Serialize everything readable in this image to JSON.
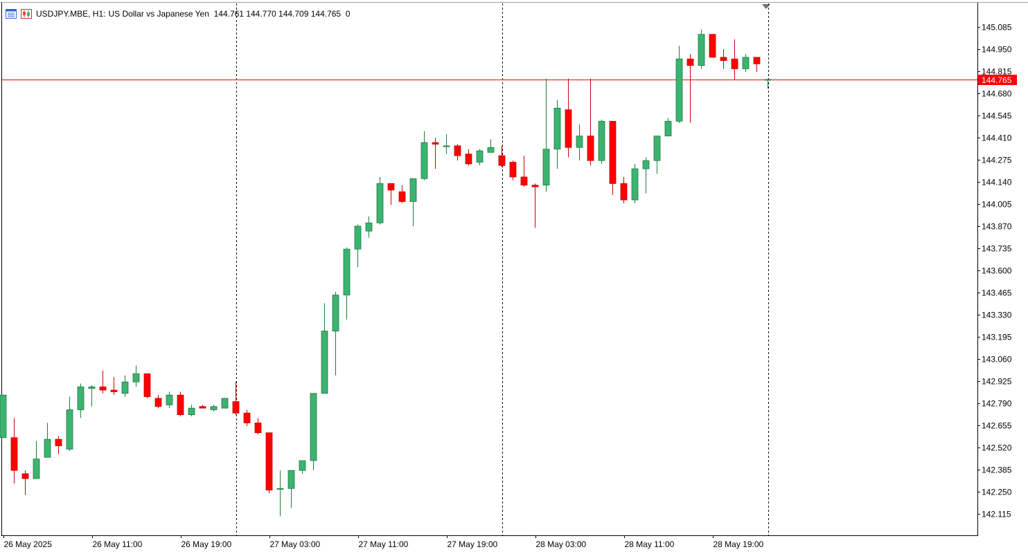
{
  "header": {
    "symbol": "USDJPY.MBE, H1:",
    "description": "US Dollar vs Japanese Yen",
    "ohlc": "144.761 144.770 144.709 144.765",
    "volume": "0"
  },
  "chart_data": {
    "type": "candlestick",
    "symbol": "USDJPY.MBE",
    "timeframe": "H1",
    "description": "US Dollar vs Japanese Yen",
    "ylim": [
      142.02,
      145.22
    ],
    "y_ticks": [
      "145.085",
      "144.950",
      "144.815",
      "144.680",
      "144.545",
      "144.410",
      "144.275",
      "144.140",
      "144.005",
      "143.870",
      "143.735",
      "143.600",
      "143.465",
      "143.330",
      "143.195",
      "143.060",
      "142.925",
      "142.790",
      "142.655",
      "142.520",
      "142.385",
      "142.250",
      "142.115"
    ],
    "x_ticks": [
      "26 May 2025",
      "26 May 11:00",
      "26 May 19:00",
      "27 May 03:00",
      "27 May 11:00",
      "27 May 19:00",
      "28 May 03:00",
      "28 May 11:00",
      "28 May 19:00"
    ],
    "current_price": "144.765",
    "bull_color": "#3cb371",
    "bear_color": "#ff0000",
    "price_line_color": "#ff0000",
    "candles": [
      {
        "o": 142.58,
        "h": 142.84,
        "l": 142.58,
        "c": 142.84
      },
      {
        "o": 142.58,
        "h": 142.7,
        "l": 142.3,
        "c": 142.38
      },
      {
        "o": 142.36,
        "h": 142.38,
        "l": 142.23,
        "c": 142.33
      },
      {
        "o": 142.33,
        "h": 142.56,
        "l": 142.33,
        "c": 142.45
      },
      {
        "o": 142.46,
        "h": 142.67,
        "l": 142.46,
        "c": 142.57
      },
      {
        "o": 142.57,
        "h": 142.59,
        "l": 142.48,
        "c": 142.53
      },
      {
        "o": 142.51,
        "h": 142.83,
        "l": 142.5,
        "c": 142.75
      },
      {
        "o": 142.75,
        "h": 142.91,
        "l": 142.7,
        "c": 142.89
      },
      {
        "o": 142.88,
        "h": 142.9,
        "l": 142.77,
        "c": 142.89
      },
      {
        "o": 142.89,
        "h": 142.99,
        "l": 142.85,
        "c": 142.87
      },
      {
        "o": 142.87,
        "h": 142.95,
        "l": 142.84,
        "c": 142.86
      },
      {
        "o": 142.85,
        "h": 142.96,
        "l": 142.83,
        "c": 142.92
      },
      {
        "o": 142.92,
        "h": 143.02,
        "l": 142.89,
        "c": 142.97
      },
      {
        "o": 142.97,
        "h": 142.97,
        "l": 142.82,
        "c": 142.83
      },
      {
        "o": 142.82,
        "h": 142.84,
        "l": 142.76,
        "c": 142.77
      },
      {
        "o": 142.78,
        "h": 142.86,
        "l": 142.76,
        "c": 142.84
      },
      {
        "o": 142.84,
        "h": 142.86,
        "l": 142.71,
        "c": 142.72
      },
      {
        "o": 142.72,
        "h": 142.78,
        "l": 142.71,
        "c": 142.76
      },
      {
        "o": 142.77,
        "h": 142.78,
        "l": 142.76,
        "c": 142.76
      },
      {
        "o": 142.75,
        "h": 142.78,
        "l": 142.74,
        "c": 142.77
      },
      {
        "o": 142.76,
        "h": 142.82,
        "l": 142.76,
        "c": 142.82
      },
      {
        "o": 142.8,
        "h": 142.92,
        "l": 142.72,
        "c": 142.73
      },
      {
        "o": 142.73,
        "h": 142.75,
        "l": 142.65,
        "c": 142.67
      },
      {
        "o": 142.67,
        "h": 142.7,
        "l": 142.6,
        "c": 142.61
      },
      {
        "o": 142.61,
        "h": 142.61,
        "l": 142.24,
        "c": 142.26
      },
      {
        "o": 142.27,
        "h": 142.38,
        "l": 142.1,
        "c": 142.27
      },
      {
        "o": 142.27,
        "h": 142.38,
        "l": 142.15,
        "c": 142.38
      },
      {
        "o": 142.38,
        "h": 142.44,
        "l": 142.36,
        "c": 142.44
      },
      {
        "o": 142.44,
        "h": 142.85,
        "l": 142.38,
        "c": 142.85
      },
      {
        "o": 142.85,
        "h": 143.4,
        "l": 142.85,
        "c": 143.23
      },
      {
        "o": 143.23,
        "h": 143.47,
        "l": 142.96,
        "c": 143.45
      },
      {
        "o": 143.45,
        "h": 143.74,
        "l": 143.3,
        "c": 143.73
      },
      {
        "o": 143.73,
        "h": 143.88,
        "l": 143.62,
        "c": 143.87
      },
      {
        "o": 143.84,
        "h": 143.93,
        "l": 143.8,
        "c": 143.89
      },
      {
        "o": 143.89,
        "h": 144.17,
        "l": 143.88,
        "c": 144.13
      },
      {
        "o": 144.13,
        "h": 144.13,
        "l": 144.0,
        "c": 144.09
      },
      {
        "o": 144.08,
        "h": 144.12,
        "l": 144.01,
        "c": 144.02
      },
      {
        "o": 144.02,
        "h": 144.16,
        "l": 143.87,
        "c": 144.16
      },
      {
        "o": 144.16,
        "h": 144.45,
        "l": 144.15,
        "c": 144.38
      },
      {
        "o": 144.38,
        "h": 144.41,
        "l": 144.22,
        "c": 144.37
      },
      {
        "o": 144.36,
        "h": 144.43,
        "l": 144.31,
        "c": 144.36
      },
      {
        "o": 144.36,
        "h": 144.37,
        "l": 144.27,
        "c": 144.3
      },
      {
        "o": 144.31,
        "h": 144.34,
        "l": 144.24,
        "c": 144.25
      },
      {
        "o": 144.26,
        "h": 144.34,
        "l": 144.24,
        "c": 144.33
      },
      {
        "o": 144.32,
        "h": 144.4,
        "l": 144.32,
        "c": 144.35
      },
      {
        "o": 144.3,
        "h": 144.36,
        "l": 144.23,
        "c": 144.24
      },
      {
        "o": 144.26,
        "h": 144.27,
        "l": 144.15,
        "c": 144.17
      },
      {
        "o": 144.17,
        "h": 144.3,
        "l": 144.11,
        "c": 144.12
      },
      {
        "o": 144.12,
        "h": 144.13,
        "l": 143.86,
        "c": 144.11
      },
      {
        "o": 144.12,
        "h": 144.77,
        "l": 144.08,
        "c": 144.34
      },
      {
        "o": 144.34,
        "h": 144.64,
        "l": 144.22,
        "c": 144.59
      },
      {
        "o": 144.58,
        "h": 144.77,
        "l": 144.29,
        "c": 144.35
      },
      {
        "o": 144.35,
        "h": 144.49,
        "l": 144.27,
        "c": 144.42
      },
      {
        "o": 144.42,
        "h": 144.77,
        "l": 144.24,
        "c": 144.27
      },
      {
        "o": 144.27,
        "h": 144.52,
        "l": 144.25,
        "c": 144.51
      },
      {
        "o": 144.51,
        "h": 144.51,
        "l": 144.06,
        "c": 144.13
      },
      {
        "o": 144.13,
        "h": 144.17,
        "l": 144.01,
        "c": 144.03
      },
      {
        "o": 144.03,
        "h": 144.25,
        "l": 144.01,
        "c": 144.22
      },
      {
        "o": 144.22,
        "h": 144.29,
        "l": 144.07,
        "c": 144.27
      },
      {
        "o": 144.27,
        "h": 144.42,
        "l": 144.19,
        "c": 144.42
      },
      {
        "o": 144.42,
        "h": 144.53,
        "l": 144.42,
        "c": 144.51
      },
      {
        "o": 144.51,
        "h": 144.97,
        "l": 144.5,
        "c": 144.89
      },
      {
        "o": 144.89,
        "h": 144.92,
        "l": 144.5,
        "c": 144.85
      },
      {
        "o": 144.85,
        "h": 145.07,
        "l": 144.83,
        "c": 145.04
      },
      {
        "o": 145.04,
        "h": 145.04,
        "l": 144.9,
        "c": 144.9
      },
      {
        "o": 144.9,
        "h": 144.95,
        "l": 144.83,
        "c": 144.88
      },
      {
        "o": 144.89,
        "h": 145.01,
        "l": 144.76,
        "c": 144.83
      },
      {
        "o": 144.83,
        "h": 144.92,
        "l": 144.81,
        "c": 144.9
      },
      {
        "o": 144.9,
        "h": 144.9,
        "l": 144.81,
        "c": 144.86
      },
      {
        "o": 144.761,
        "h": 144.77,
        "l": 144.709,
        "c": 144.765
      }
    ]
  }
}
